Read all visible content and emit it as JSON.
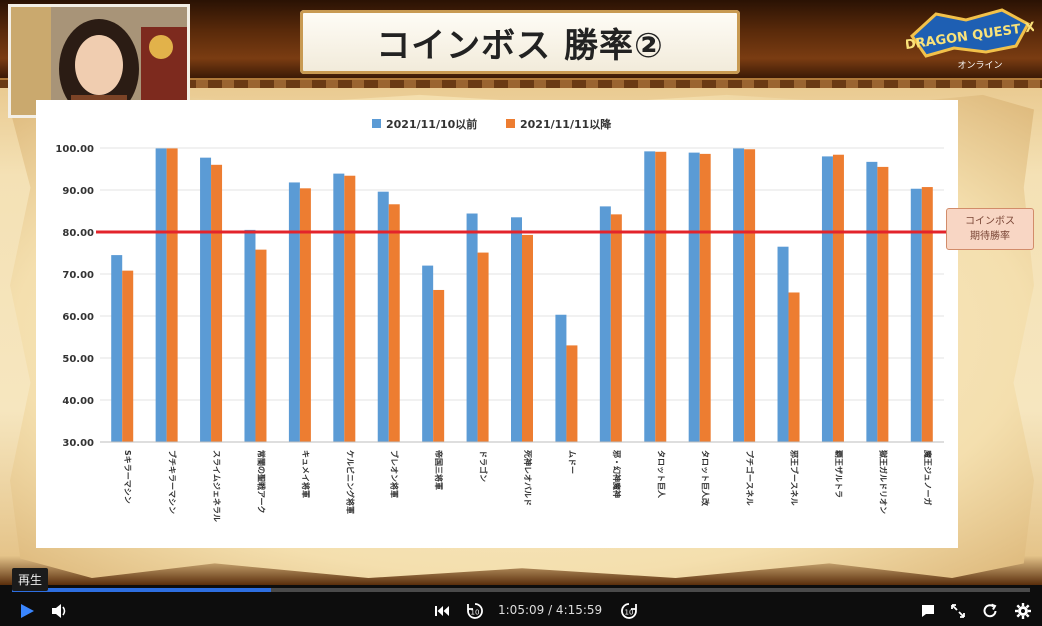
{
  "slide": {
    "title": "コインボス 勝率②",
    "logo_text": "DRAGON QUEST X",
    "logo_subtext": "オンライン"
  },
  "chart_data": {
    "type": "bar",
    "legend": [
      "2021/11/10以前",
      "2021/11/11以降"
    ],
    "legend_position": "top",
    "categories": [
      "Sキラーマシン",
      "ブチキラーマシン",
      "スライムジェネラル",
      "常闇の聖戦アーク",
      "キュメイ将軍",
      "ケルビニング将軍",
      "ブレオン将軍",
      "帝国三将軍",
      "ドラゴン",
      "死神レオバルド",
      "ムドー",
      "邪・幻神魔神",
      "タロット巨人",
      "タロット巨人改",
      "プチゴースネル",
      "邪王ブースネル",
      "覇王ザルトラ",
      "獄王ガルドリオン",
      "魔王ジュノーガ"
    ],
    "series": [
      {
        "name": "2021/11/10以前",
        "color": "#5b9bd5",
        "values": [
          74.5,
          99.9,
          97.7,
          80.5,
          91.8,
          93.9,
          89.6,
          72.0,
          84.4,
          83.5,
          60.3,
          86.1,
          99.2,
          98.9,
          99.9,
          76.5,
          98.0,
          96.7,
          90.3
        ]
      },
      {
        "name": "2021/11/11以降",
        "color": "#ed7d31",
        "values": [
          70.8,
          99.9,
          96.0,
          75.8,
          90.4,
          93.4,
          86.6,
          66.2,
          75.1,
          79.3,
          53.0,
          84.2,
          99.1,
          98.6,
          99.7,
          65.6,
          98.4,
          95.5,
          90.7
        ]
      }
    ],
    "y_ticks": [
      "100.00",
      "90.00",
      "80.00",
      "70.00",
      "60.00",
      "50.00",
      "40.00",
      "30.00"
    ],
    "ylim": [
      30,
      100
    ],
    "reference_line": {
      "value": 80,
      "color": "#e3242b",
      "label_line1": "コインボス",
      "label_line2": "期待勝率"
    },
    "grid": true
  },
  "player": {
    "tooltip": "再生",
    "current_time": "1:05:09",
    "duration": "4:15:59",
    "time_text": "1:05:09 / 4:15:59",
    "progress": 0.2546,
    "accent_color": "#2d6ee0",
    "controls": {
      "play": "play-icon",
      "volume": "volume-icon",
      "previous": "skip-previous-icon",
      "rewind": "replay-10-icon",
      "forward": "forward-10-icon",
      "comments": "comment-icon",
      "fullscreen": "fullscreen-icon",
      "reload": "reload-icon",
      "settings": "gear-icon"
    }
  }
}
